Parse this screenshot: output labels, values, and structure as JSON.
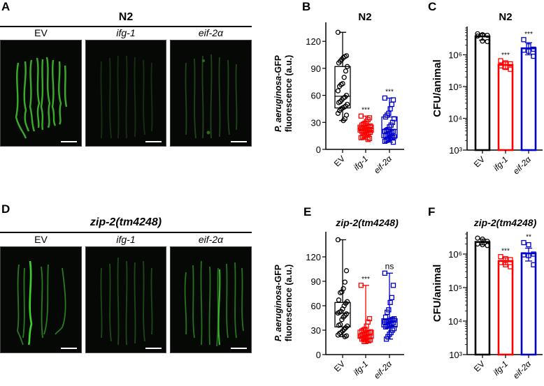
{
  "figure": {
    "panels": {
      "A": {
        "letter": "A",
        "title": "N2",
        "columns": [
          "EV",
          "ifg-1",
          "eif-2α"
        ]
      },
      "B": {
        "letter": "B",
        "title": "N2"
      },
      "C": {
        "letter": "C",
        "title": "N2"
      },
      "D": {
        "letter": "D",
        "title": "zip-2(tm4248)",
        "columns": [
          "EV",
          "ifg-1",
          "eif-2α"
        ]
      },
      "E": {
        "letter": "E",
        "title": "zip-2(tm4248)"
      },
      "F": {
        "letter": "F",
        "title": "zip-2(tm4248)"
      }
    }
  },
  "colors": {
    "EV": "#000000",
    "ifg-1": "#ff0000",
    "eif-2α": "#0000cc"
  },
  "chart_data": [
    {
      "panel": "B",
      "type": "box",
      "title": "N2",
      "ylabel": "P. aeruginosa-GFP fluorescence (a.u.)",
      "categories": [
        "EV",
        "ifg-1",
        "eif-2α"
      ],
      "yticks": [
        0,
        30,
        60,
        90,
        120
      ],
      "ylim": [
        0,
        132
      ],
      "series": [
        {
          "name": "EV",
          "marker": "circle",
          "min": 32,
          "q1": 46,
          "median": 59,
          "q3": 92,
          "max": 130,
          "significance": "",
          "points": [
            130,
            104,
            103,
            102,
            100,
            98,
            96,
            92,
            87,
            80,
            73,
            72,
            70,
            65,
            60,
            58,
            57,
            55,
            53,
            52,
            50,
            48,
            47,
            46,
            45,
            43,
            40,
            38,
            34,
            32
          ]
        },
        {
          "name": "ifg-1",
          "marker": "square",
          "min": 11,
          "q1": 19,
          "median": 23,
          "q3": 27,
          "max": 37,
          "significance": "***",
          "points": [
            37,
            35,
            33,
            31,
            29,
            28,
            27,
            26,
            25,
            25,
            24,
            24,
            23,
            23,
            22,
            22,
            21,
            21,
            20,
            20,
            19,
            18,
            17,
            16,
            15,
            14,
            13,
            12,
            11
          ]
        },
        {
          "name": "eif-2α",
          "marker": "square",
          "min": 8,
          "q1": 13,
          "median": 22,
          "q3": 36,
          "max": 57,
          "significance": "***",
          "points": [
            57,
            55,
            50,
            45,
            40,
            38,
            36,
            34,
            30,
            27,
            25,
            22,
            21,
            20,
            20,
            19,
            18,
            17,
            16,
            15,
            14,
            13,
            13,
            12,
            11,
            10,
            9,
            8
          ]
        }
      ]
    },
    {
      "panel": "C",
      "type": "bar",
      "title": "N2",
      "ylabel": "CFU/animal",
      "yscale": "log",
      "categories": [
        "EV",
        "ifg-1",
        "eif-2α"
      ],
      "yticks": [
        "10³",
        "10⁴",
        "10⁵",
        "10⁶"
      ],
      "ylim": [
        1000,
        6000000
      ],
      "series": [
        {
          "name": "EV",
          "marker": "circle",
          "mean": 3800000,
          "sd_low": 2900000,
          "sd_high": 4600000,
          "significance": "",
          "points": [
            4600000,
            4300000,
            4100000,
            3900000,
            2700000,
            2600000
          ]
        },
        {
          "name": "ifg-1",
          "marker": "square",
          "mean": 480000,
          "sd_low": 360000,
          "sd_high": 600000,
          "significance": "***",
          "points": [
            650000,
            560000,
            520000,
            450000,
            400000,
            350000
          ]
        },
        {
          "name": "eif-2α",
          "marker": "square",
          "mean": 1600000,
          "sd_low": 1000000,
          "sd_high": 2400000,
          "significance": "***",
          "points": [
            3000000,
            1900000,
            1500000,
            1400000,
            1300000,
            900000
          ]
        }
      ]
    },
    {
      "panel": "E",
      "type": "box",
      "title": "zip-2(tm4248)",
      "ylabel": "P. aeruginosa-GFP fluorescence (a.u.)",
      "categories": [
        "EV",
        "ifg-1",
        "eif-2α"
      ],
      "yticks": [
        0,
        30,
        60,
        90,
        120
      ],
      "ylim": [
        0,
        145
      ],
      "series": [
        {
          "name": "EV",
          "marker": "circle",
          "min": 22,
          "q1": 34,
          "median": 51,
          "q3": 64,
          "max": 141,
          "significance": "",
          "points": [
            141,
            103,
            89,
            81,
            77,
            76,
            67,
            65,
            63,
            60,
            56,
            53,
            52,
            51,
            50,
            48,
            46,
            43,
            37,
            36,
            35,
            33,
            31,
            29,
            27,
            26,
            24,
            23,
            22
          ]
        },
        {
          "name": "ifg-1",
          "marker": "square",
          "min": 16,
          "q1": 20,
          "median": 24,
          "q3": 30,
          "max": 85,
          "significance": "***",
          "points": [
            85,
            44,
            40,
            35,
            31,
            30,
            29,
            28,
            27,
            26,
            25,
            24,
            24,
            23,
            22,
            22,
            21,
            20,
            20,
            19,
            18,
            17,
            17,
            16,
            16
          ]
        },
        {
          "name": "eif-2α",
          "marker": "square",
          "min": 19,
          "q1": 34,
          "median": 40,
          "q3": 44,
          "max": 100,
          "significance": "ns",
          "points": [
            100,
            85,
            70,
            64,
            55,
            52,
            46,
            44,
            43,
            42,
            42,
            41,
            40,
            40,
            39,
            38,
            37,
            36,
            35,
            34,
            32,
            30,
            27,
            25,
            22,
            19
          ]
        }
      ]
    },
    {
      "panel": "F",
      "type": "bar",
      "title": "zip-2(tm4248)",
      "ylabel": "CFU/animal",
      "yscale": "log",
      "categories": [
        "EV",
        "ifg-1",
        "eif-2α"
      ],
      "yticks": [
        "10³",
        "10⁴",
        "10⁵",
        "10⁶"
      ],
      "ylim": [
        1000,
        3500000
      ],
      "series": [
        {
          "name": "EV",
          "marker": "circle",
          "mean": 2300000,
          "sd_low": 1900000,
          "sd_high": 2800000,
          "significance": "",
          "points": [
            3000000,
            2800000,
            2400000,
            2000000,
            1900000,
            1800000
          ]
        },
        {
          "name": "ifg-1",
          "marker": "square",
          "mean": 620000,
          "sd_low": 480000,
          "sd_high": 770000,
          "significance": "***",
          "points": [
            840000,
            730000,
            680000,
            560000,
            480000,
            420000
          ]
        },
        {
          "name": "eif-2α",
          "marker": "square",
          "mean": 1050000,
          "sd_low": 620000,
          "sd_high": 1500000,
          "significance": "**",
          "points": [
            2200000,
            1900000,
            1000000,
            950000,
            900000,
            480000
          ]
        }
      ]
    }
  ]
}
